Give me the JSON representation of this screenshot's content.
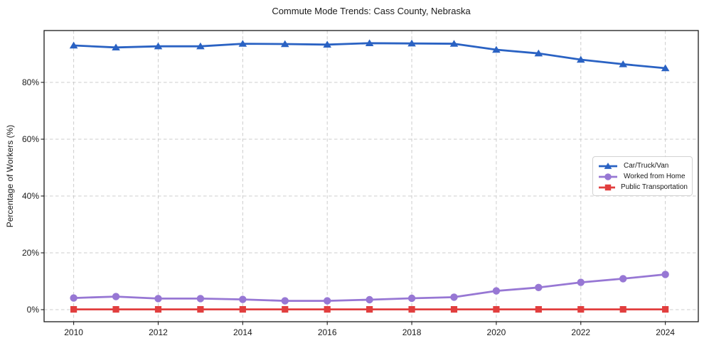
{
  "chart_data": {
    "type": "line",
    "title": "Commute Mode Trends: Cass County, Nebraska",
    "xlabel": "",
    "ylabel": "Percentage of Workers (%)",
    "x": [
      2010,
      2011,
      2012,
      2013,
      2014,
      2015,
      2016,
      2017,
      2018,
      2019,
      2020,
      2021,
      2022,
      2023,
      2024
    ],
    "series": [
      {
        "name": "Car/Truck/Van",
        "color": "#2a62c3",
        "marker": "triangle",
        "values": [
          93.0,
          92.3,
          92.7,
          92.7,
          93.6,
          93.5,
          93.3,
          93.8,
          93.7,
          93.6,
          91.5,
          90.2,
          88.0,
          86.4,
          85.0
        ]
      },
      {
        "name": "Worked from Home",
        "color": "#9777d4",
        "marker": "circle",
        "values": [
          4.1,
          4.6,
          3.9,
          3.9,
          3.6,
          3.1,
          3.1,
          3.5,
          4.0,
          4.4,
          6.6,
          7.8,
          9.6,
          10.9,
          12.4
        ]
      },
      {
        "name": "Public Transportation",
        "color": "#e13e3e",
        "marker": "square",
        "values": [
          0.1,
          0.1,
          0.1,
          0.1,
          0.1,
          0.1,
          0.1,
          0.1,
          0.1,
          0.1,
          0.1,
          0.1,
          0.1,
          0.1,
          0.1
        ]
      }
    ],
    "x_ticks": [
      2010,
      2012,
      2014,
      2016,
      2018,
      2020,
      2022,
      2024
    ],
    "y_ticks": [
      0,
      20,
      40,
      60,
      80
    ],
    "y_tick_suffix": "%",
    "xlim": [
      2009.3,
      2024.78
    ],
    "ylim": [
      -4.25,
      98.25
    ],
    "grid": true,
    "grid_color": "#cccccc",
    "axis_color": "#1a1a1a",
    "legend_position": "center-right"
  }
}
